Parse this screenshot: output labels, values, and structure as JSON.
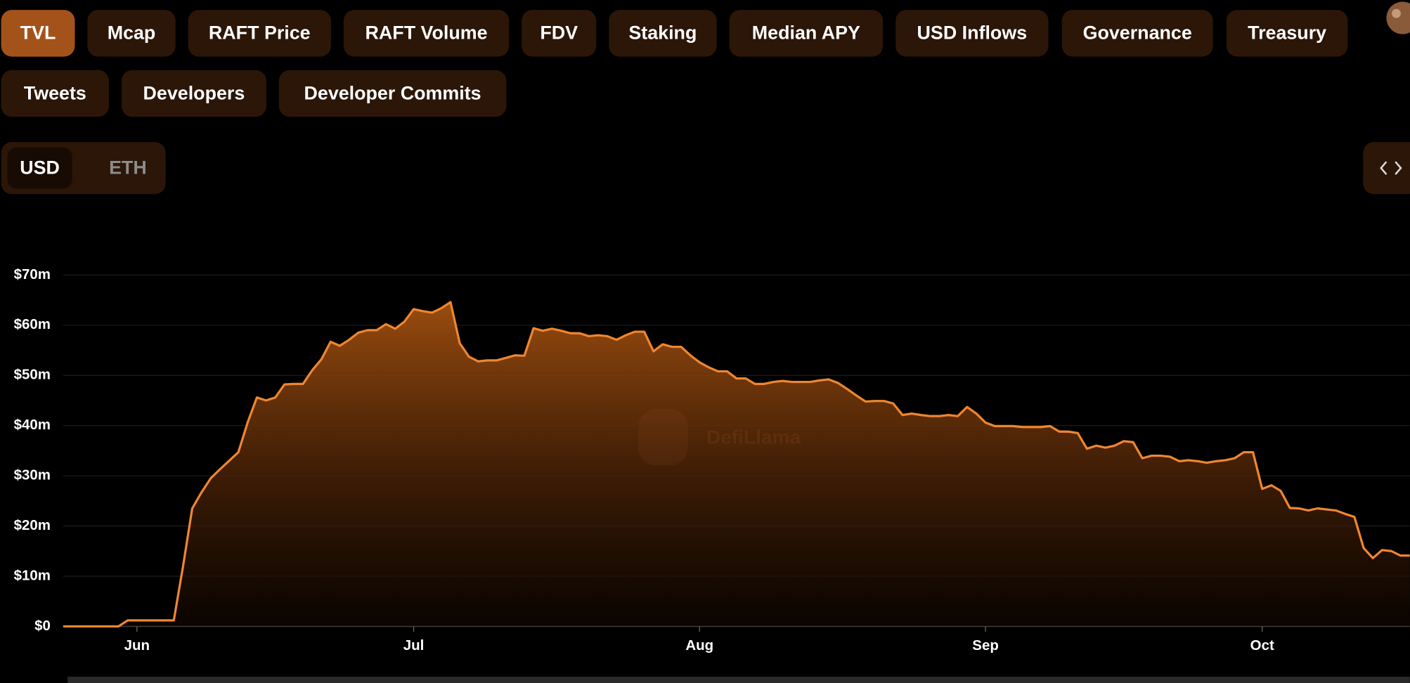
{
  "tabs": [
    "TVL",
    "Mcap",
    "RAFT Price",
    "RAFT Volume",
    "FDV",
    "Staking",
    "Median APY",
    "USD Inflows",
    "Governance",
    "Treasury",
    "Tweets",
    "Developers",
    "Developer Commits"
  ],
  "active_tab": "TVL",
  "currency_toggle": [
    "USD",
    "ETH"
  ],
  "active_currency": "USD",
  "chart_data": {
    "type": "area",
    "watermark": "DefiLlama",
    "color": "#f0862f",
    "categories": [
      null,
      null,
      null,
      null,
      null,
      null,
      null,
      null,
      "Jun",
      null,
      null,
      null,
      null,
      null,
      null,
      null,
      null,
      null,
      null,
      null,
      null,
      null,
      null,
      null,
      null,
      null,
      null,
      null,
      null,
      null,
      null,
      null,
      null,
      null,
      null,
      null,
      null,
      null,
      "Jul",
      null,
      null,
      null,
      null,
      null,
      null,
      null,
      null,
      null,
      null,
      null,
      null,
      null,
      null,
      null,
      null,
      null,
      null,
      null,
      null,
      null,
      null,
      null,
      null,
      null,
      null,
      null,
      null,
      null,
      null,
      "Aug",
      null,
      null,
      null,
      null,
      null,
      null,
      null,
      null,
      null,
      null,
      null,
      null,
      null,
      null,
      null,
      null,
      null,
      null,
      null,
      null,
      null,
      null,
      null,
      null,
      null,
      null,
      null,
      null,
      null,
      null,
      "Sep",
      null,
      null,
      null,
      null,
      null,
      null,
      null,
      null,
      null,
      null,
      null,
      null,
      null,
      null,
      null,
      null,
      null,
      null,
      null,
      null,
      null,
      null,
      null,
      null,
      null,
      null,
      null,
      null,
      null,
      "Oct",
      null,
      null,
      null,
      null,
      null,
      null,
      null,
      null,
      null,
      null,
      null,
      null,
      null,
      null,
      null,
      null
    ],
    "values": [
      0,
      0,
      0,
      0,
      0,
      0,
      0,
      1.2,
      1.2,
      1.2,
      1.2,
      1.2,
      1.2,
      12,
      23.5,
      26.7,
      29.5,
      31.3,
      33,
      34.7,
      40.6,
      45.6,
      45,
      45.6,
      48.2,
      48.3,
      48.3,
      51,
      53.2,
      56.7,
      55.9,
      57.1,
      58.5,
      59,
      59,
      60.2,
      59.3,
      60.7,
      63.2,
      62.8,
      62.5,
      63.4,
      64.6,
      56.4,
      53.7,
      52.8,
      53,
      53,
      53.5,
      54,
      53.9,
      59.4,
      58.9,
      59.3,
      58.9,
      58.4,
      58.4,
      57.8,
      58,
      57.8,
      57.1,
      58,
      58.7,
      58.7,
      54.8,
      56.2,
      55.7,
      55.7,
      54,
      52.6,
      51.6,
      50.8,
      50.8,
      49.4,
      49.4,
      48.3,
      48.3,
      48.7,
      48.9,
      48.7,
      48.7,
      48.7,
      49,
      49.2,
      48.5,
      47.3,
      46,
      44.8,
      44.9,
      44.9,
      44.4,
      42.1,
      42.4,
      42.1,
      41.9,
      41.9,
      42.1,
      41.9,
      43.7,
      42.4,
      40.6,
      39.9,
      39.9,
      39.9,
      39.7,
      39.7,
      39.7,
      39.9,
      38.8,
      38.8,
      38.5,
      35.4,
      36,
      35.6,
      36,
      36.9,
      36.7,
      33.5,
      34,
      34,
      33.8,
      32.9,
      33.1,
      32.9,
      32.6,
      32.9,
      33.1,
      33.5,
      34.7,
      34.7,
      27.4,
      28.1,
      27,
      23.6,
      23.5,
      23.1,
      23.5,
      23.3,
      23.1,
      22.4,
      21.8,
      15.6,
      13.6,
      15.2,
      15,
      14.1,
      14.1
    ],
    "ylim": [
      0,
      70
    ],
    "yticks": [
      {
        "value": 0,
        "label": "$0"
      },
      {
        "value": 10,
        "label": "$10m"
      },
      {
        "value": 20,
        "label": "$20m"
      },
      {
        "value": 30,
        "label": "$30m"
      },
      {
        "value": 40,
        "label": "$40m"
      },
      {
        "value": 50,
        "label": "$50m"
      },
      {
        "value": 60,
        "label": "$60m"
      },
      {
        "value": 70,
        "label": "$70m"
      }
    ],
    "grid": true
  }
}
